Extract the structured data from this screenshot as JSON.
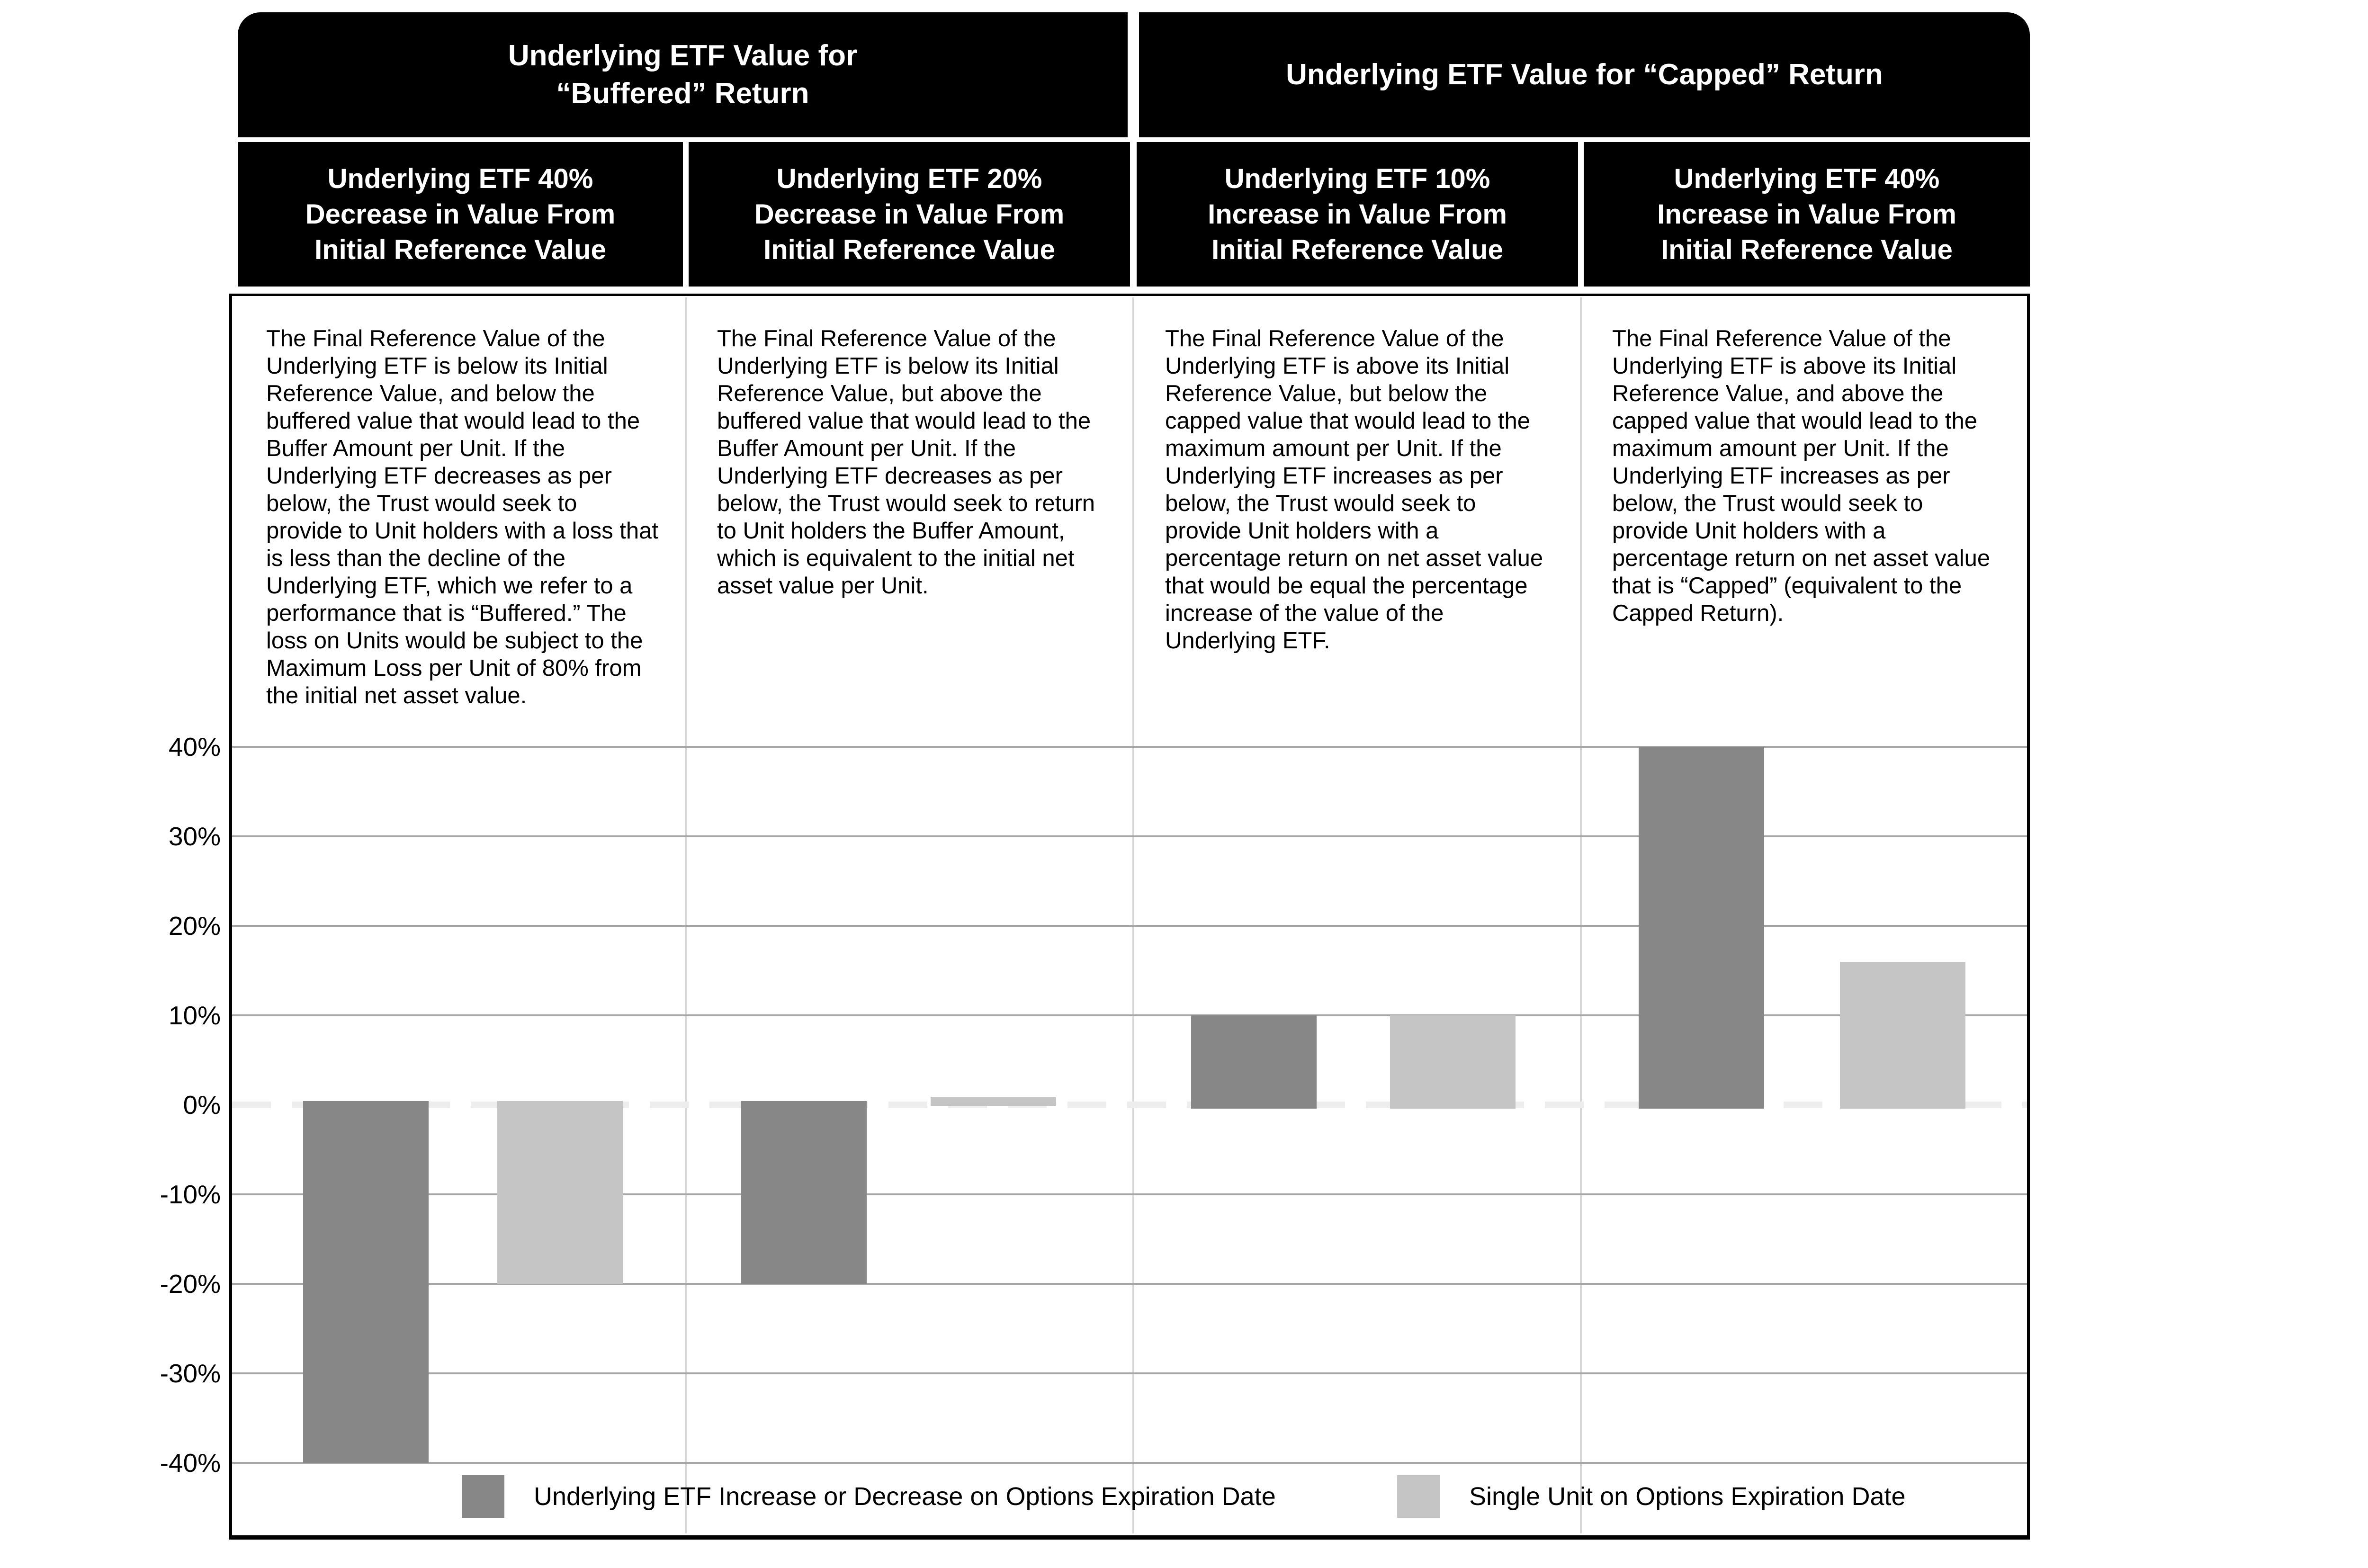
{
  "banners": [
    {
      "line1": "Underlying ETF Value for",
      "line2": "“Buffered” Return"
    },
    {
      "line1": "Underlying ETF Value for “Capped” Return",
      "line2": ""
    }
  ],
  "columns": [
    {
      "header_lines": [
        "Underlying ETF 40%",
        "Decrease in Value From",
        "Initial Reference Value"
      ],
      "body": "The Final Reference Value of the Underlying ETF is below its Initial Reference Value, and below the buffered value that would lead to the Buffer Amount per Unit. If the Underlying ETF decreases as per below, the Trust would seek to provide to Unit holders with a loss that is less than the decline of the Underlying ETF, which we refer to a performance that is “Buffered.” The loss on Units would be subject to the Maximum Loss per Unit of 80% from the initial net asset value."
    },
    {
      "header_lines": [
        "Underlying ETF 20%",
        "Decrease in Value From",
        "Initial Reference Value"
      ],
      "body": "The Final Reference Value of the Underlying ETF is below its Initial Reference Value, but above the buffered value that would lead to the Buffer Amount per Unit. If the Underlying ETF decreases as per below, the Trust would seek to return to Unit holders the Buffer Amount, which is equivalent to the initial net asset value per Unit."
    },
    {
      "header_lines": [
        "Underlying ETF 10%",
        "Increase in Value From",
        "Initial Reference Value"
      ],
      "body": "The Final Reference Value of the Underlying ETF is above its Initial Reference Value, but below the capped value that would lead to the maximum amount per Unit. If the Underlying ETF increases as per below, the Trust would seek to provide Unit holders with a percentage return on net asset value that would be equal the percentage increase of the value of the Underlying ETF."
    },
    {
      "header_lines": [
        "Underlying ETF 40%",
        "Increase in Value From",
        "Initial Reference Value"
      ],
      "body": "The Final Reference Value of the Underlying ETF is above its Initial Reference Value, and above the capped value that would lead to the maximum amount per Unit. If the Underlying ETF increases as per below, the Trust would seek to provide Unit holders with a percentage return on net asset value that is “Capped” (equivalent to the Capped Return)."
    }
  ],
  "chart_data": {
    "type": "bar",
    "categories": [
      "Underlying ETF 40% Decrease in Value From Initial Reference Value",
      "Underlying ETF 20% Decrease in Value From Initial Reference Value",
      "Underlying ETF 10% Increase in Value From Initial Reference Value",
      "Underlying ETF 40% Increase in Value From Initial Reference Value"
    ],
    "series": [
      {
        "name": "Underlying ETF Increase or Decrease on Options Expiration Date",
        "color": "#878787",
        "values": [
          -40,
          -20,
          10,
          40
        ]
      },
      {
        "name": "Single Unit on Options Expiration Date",
        "color": "#c5c5c5",
        "values": [
          -20,
          0,
          10,
          16
        ]
      }
    ],
    "ytick_labels": [
      "40%",
      "30%",
      "20%",
      "10%",
      "0%",
      "-10%",
      "-20%",
      "-30%",
      "-40%"
    ],
    "ytick_values": [
      40,
      30,
      20,
      10,
      0,
      -10,
      -20,
      -30,
      -40
    ],
    "ylim": [
      -45,
      45
    ],
    "grid": "on",
    "zero_line": "dashed",
    "legend_position": "bottom",
    "gridline_color": "#a6a6a6",
    "zero_line_color": "#ededed"
  }
}
